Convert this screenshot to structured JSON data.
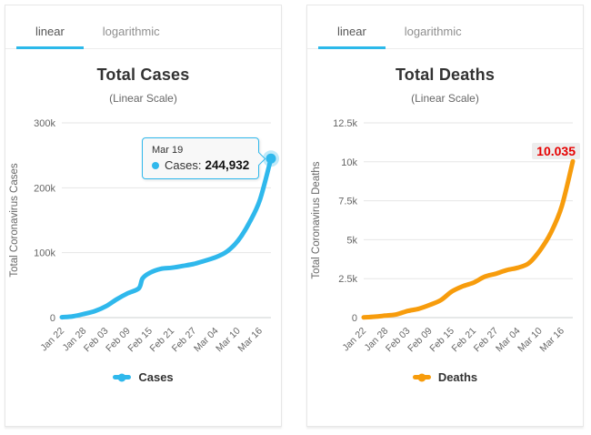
{
  "tabs": {
    "linear": "linear",
    "logarithmic": "logarithmic"
  },
  "colors": {
    "accent": "#2cb9ea",
    "cases": "#2fb8ec",
    "deaths": "#f79c0c",
    "end_label_red": "#e60000"
  },
  "chart_data": [
    {
      "type": "line",
      "title": "Total Cases",
      "subtitle": "(Linear Scale)",
      "xlabel": "",
      "ylabel": "Total Coronavirus Cases",
      "grid": true,
      "legend_position": "bottom",
      "xlim": [
        0,
        57
      ],
      "ylim": [
        0,
        300000
      ],
      "y_ticks": [
        0,
        100000,
        200000,
        300000
      ],
      "y_tick_labels": [
        "0",
        "100k",
        "200k",
        "300k"
      ],
      "x_tick_days": [
        0,
        6,
        12,
        18,
        24,
        30,
        36,
        42,
        48,
        54
      ],
      "x_tick_labels": [
        "Jan 22",
        "Jan 28",
        "Feb 03",
        "Feb 09",
        "Feb 15",
        "Feb 21",
        "Feb 27",
        "Mar 04",
        "Mar 10",
        "Mar 16"
      ],
      "end_marker": true,
      "tooltip": {
        "date": "Mar 19",
        "label": "Cases:",
        "value": "244,932"
      },
      "series": [
        {
          "name": "Cases",
          "color": "#2fb8ec",
          "points": [
            [
              0,
              555
            ],
            [
              3,
              1975
            ],
            [
              6,
              5578
            ],
            [
              9,
              9927
            ],
            [
              12,
              17391
            ],
            [
              15,
              28276
            ],
            [
              18,
              37552
            ],
            [
              21,
              45171
            ],
            [
              22,
              60368
            ],
            [
              24,
              69030
            ],
            [
              27,
              75136
            ],
            [
              30,
              76767
            ],
            [
              33,
              79561
            ],
            [
              36,
              82756
            ],
            [
              39,
              87671
            ],
            [
              42,
              93016
            ],
            [
              45,
              101799
            ],
            [
              48,
              118319
            ],
            [
              51,
              145193
            ],
            [
              54,
              181546
            ],
            [
              57,
              244932
            ]
          ]
        }
      ]
    },
    {
      "type": "line",
      "title": "Total Deaths",
      "subtitle": "(Linear Scale)",
      "xlabel": "",
      "ylabel": "Total Coronavirus Deaths",
      "grid": true,
      "legend_position": "bottom",
      "xlim": [
        0,
        57
      ],
      "ylim": [
        0,
        12500
      ],
      "y_ticks": [
        0,
        2500,
        5000,
        7500,
        10000,
        12500
      ],
      "y_tick_labels": [
        "0",
        "2.5k",
        "5k",
        "7.5k",
        "10k",
        "12.5k"
      ],
      "x_tick_days": [
        0,
        6,
        12,
        18,
        24,
        30,
        36,
        42,
        48,
        54
      ],
      "x_tick_labels": [
        "Jan 22",
        "Jan 28",
        "Feb 03",
        "Feb 09",
        "Feb 15",
        "Feb 21",
        "Feb 27",
        "Mar 04",
        "Mar 10",
        "Mar 16"
      ],
      "end_marker": false,
      "end_label": "10.035",
      "end_label_color": "#e60000",
      "series": [
        {
          "name": "Deaths",
          "color": "#f79c0c",
          "points": [
            [
              0,
              17
            ],
            [
              3,
              56
            ],
            [
              6,
              131
            ],
            [
              9,
              213
            ],
            [
              12,
              426
            ],
            [
              15,
              565
            ],
            [
              18,
              813
            ],
            [
              21,
              1118
            ],
            [
              24,
              1670
            ],
            [
              27,
              2010
            ],
            [
              30,
              2250
            ],
            [
              33,
              2628
            ],
            [
              36,
              2814
            ],
            [
              39,
              3050
            ],
            [
              42,
              3202
            ],
            [
              45,
              3491
            ],
            [
              48,
              4296
            ],
            [
              51,
              5436
            ],
            [
              54,
              7155
            ],
            [
              57,
              10035
            ]
          ]
        }
      ]
    }
  ]
}
